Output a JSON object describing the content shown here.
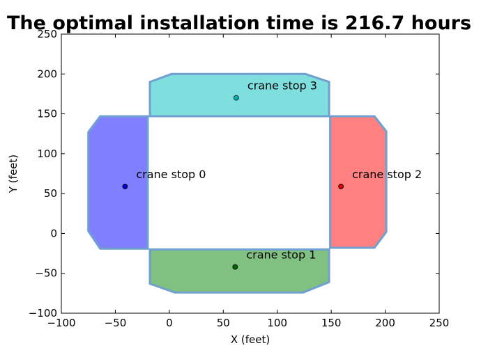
{
  "chart_data": {
    "type": "area",
    "title": "The optimal installation time is  216.7 hours",
    "xlabel": "X (feet)",
    "ylabel": "Y (feet)",
    "xlim": [
      -100,
      250
    ],
    "ylim": [
      -100,
      250
    ],
    "xticks": [
      -100,
      -50,
      0,
      50,
      100,
      150,
      200,
      250
    ],
    "yticks": [
      -100,
      -50,
      0,
      50,
      100,
      150,
      200,
      250
    ],
    "xtick_labels": [
      "−100",
      "−50",
      "0",
      "50",
      "100",
      "150",
      "200",
      "250"
    ],
    "ytick_labels": [
      "−100",
      "−50",
      "0",
      "50",
      "100",
      "150",
      "200",
      "250"
    ],
    "grid": false,
    "edge_color": "#6fa0cf",
    "regions": [
      {
        "label": "crane stop 0",
        "color": "#7f7fff",
        "point_color": "#0000cc",
        "stop": [
          -41,
          59
        ],
        "polygon": [
          [
            -64,
            147
          ],
          [
            -20,
            147
          ],
          [
            -20,
            -19
          ],
          [
            -64,
            -19
          ],
          [
            -75,
            3
          ],
          [
            -75,
            127
          ]
        ]
      },
      {
        "label": "crane stop 1",
        "color": "#80c080",
        "point_color": "#006600",
        "stop": [
          61,
          -42
        ],
        "polygon": [
          [
            -18,
            -20
          ],
          [
            148,
            -20
          ],
          [
            148,
            -61
          ],
          [
            124,
            -74
          ],
          [
            5,
            -74
          ],
          [
            -18,
            -63
          ]
        ]
      },
      {
        "label": "crane stop 2",
        "color": "#ff8080",
        "point_color": "#dd0000",
        "stop": [
          159,
          59
        ],
        "polygon": [
          [
            149,
            147
          ],
          [
            190,
            147
          ],
          [
            201,
            128
          ],
          [
            201,
            2
          ],
          [
            190,
            -18
          ],
          [
            149,
            -18
          ]
        ]
      },
      {
        "label": "crane stop 3",
        "color": "#7fdfdf",
        "point_color": "#00b0b0",
        "stop": [
          62,
          170
        ],
        "polygon": [
          [
            -18,
            190
          ],
          [
            2,
            200
          ],
          [
            126,
            200
          ],
          [
            148,
            190
          ],
          [
            148,
            147
          ],
          [
            -18,
            147
          ]
        ]
      }
    ]
  }
}
